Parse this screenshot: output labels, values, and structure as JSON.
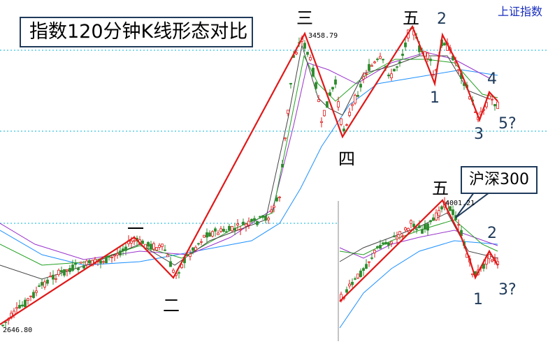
{
  "title": "指数120分钟K线形态对比",
  "corner_label": "上证指数",
  "callout": "沪深300",
  "main_chart": {
    "high_label": "3458.79",
    "low_label": "2646.80",
    "wave_labels": {
      "w1": "一",
      "w2": "二",
      "w3": "三",
      "w4": "四",
      "w5": "五"
    },
    "sub_labels": {
      "s1": "1",
      "s2": "2",
      "s3": "3",
      "s4": "4",
      "s5": "5?"
    }
  },
  "inset_chart": {
    "high_label": "4001.21",
    "wave_labels": {
      "w5": "五"
    },
    "sub_labels": {
      "s1": "1",
      "s2": "2",
      "s3": "3?"
    }
  },
  "colors": {
    "red_line": "#e01818",
    "up_candle": "#e01818",
    "down_candle": "#2c8b2c",
    "ma_blue": "#1e90ff",
    "ma_purple": "#9932cc",
    "ma_green": "#22a022",
    "ma_dark": "#444444",
    "dashed": "#00b4d8",
    "text_dark": "#1f3a5a"
  },
  "chart_data": [
    {
      "type": "candlestick",
      "title": "上证指数",
      "ylim": [
        2646.8,
        3458.79
      ],
      "labeled_values": [
        {
          "label": "high",
          "value": 3458.79
        },
        {
          "label": "low",
          "value": 2646.8
        }
      ]
    },
    {
      "type": "candlestick",
      "title": "沪深300",
      "labeled_values": [
        {
          "label": "high",
          "value": 4001.21
        }
      ]
    }
  ]
}
